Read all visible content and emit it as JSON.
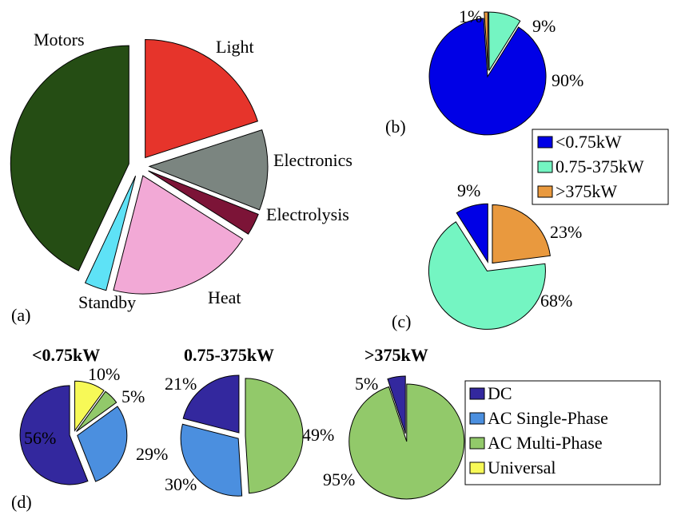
{
  "panel_labels": {
    "a": "(a)",
    "b": "(b)",
    "c": "(c)",
    "d": "(d)"
  },
  "chart_data": [
    {
      "id": "a",
      "type": "pie",
      "slices": [
        {
          "label": "Light",
          "value": 20,
          "color": "#e6342b"
        },
        {
          "label": "Electronics",
          "value": 11,
          "color": "#7b8580"
        },
        {
          "label": "Electrolysis",
          "value": 3,
          "color": "#7c1437"
        },
        {
          "label": "Heat",
          "value": 20,
          "color": "#f2a9d6"
        },
        {
          "label": "Standby",
          "value": 3,
          "color": "#5ee2f6"
        },
        {
          "label": "Motors",
          "value": 43,
          "color": "#254d14"
        }
      ]
    },
    {
      "id": "b",
      "type": "pie",
      "slices": [
        {
          "label": "1%",
          "value": 1,
          "color": "#e9993e"
        },
        {
          "label": "9%",
          "value": 9,
          "color": "#74f5c2"
        },
        {
          "label": "90%",
          "value": 90,
          "color": "#0000e6"
        }
      ]
    },
    {
      "id": "c",
      "type": "pie",
      "slices": [
        {
          "label": "23%",
          "value": 23,
          "color": "#e9993e"
        },
        {
          "label": "68%",
          "value": 68,
          "color": "#74f5c2"
        },
        {
          "label": "9%",
          "value": 9,
          "color": "#0000e6"
        }
      ]
    },
    {
      "id": "d1",
      "type": "pie",
      "title": "<0.75kW",
      "slices": [
        {
          "label": "10%",
          "value": 10,
          "color": "#f7f957"
        },
        {
          "label": "5%",
          "value": 5,
          "color": "#92c96a"
        },
        {
          "label": "29%",
          "value": 29,
          "color": "#4b8fdf"
        },
        {
          "label": "56%",
          "value": 56,
          "color": "#33289e"
        }
      ]
    },
    {
      "id": "d2",
      "type": "pie",
      "title": "0.75-375kW",
      "slices": [
        {
          "label": "49%",
          "value": 49,
          "color": "#92c96a"
        },
        {
          "label": "30%",
          "value": 30,
          "color": "#4b8fdf"
        },
        {
          "label": "21%",
          "value": 21,
          "color": "#33289e"
        }
      ]
    },
    {
      "id": "d3",
      "type": "pie",
      "title": ">375kW",
      "slices": [
        {
          "label": "95%",
          "value": 95,
          "color": "#92c96a"
        },
        {
          "label": "5%",
          "value": 5,
          "color": "#33289e"
        }
      ]
    }
  ],
  "legends": {
    "power": [
      {
        "label": "<0.75kW",
        "color": "#0000e6"
      },
      {
        "label": "0.75-375kW",
        "color": "#74f5c2"
      },
      {
        "label": ">375kW",
        "color": "#e9993e"
      }
    ],
    "current": [
      {
        "label": "DC",
        "color": "#33289e"
      },
      {
        "label": "AC Single-Phase",
        "color": "#4b8fdf"
      },
      {
        "label": "AC Multi-Phase",
        "color": "#92c96a"
      },
      {
        "label": "Universal",
        "color": "#f7f957"
      }
    ]
  }
}
